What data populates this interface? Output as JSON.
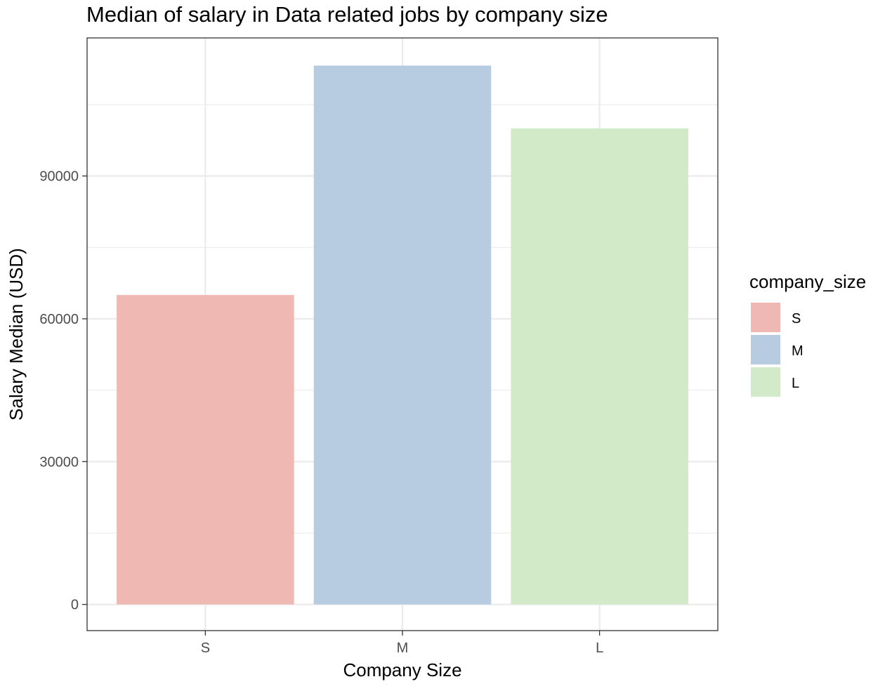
{
  "chart_data": {
    "type": "bar",
    "title": "Median of salary in Data related jobs by company size",
    "xlabel": "Company Size",
    "ylabel": "Salary Median (USD)",
    "categories": [
      "S",
      "M",
      "L"
    ],
    "values": [
      65000,
      113188,
      100000
    ],
    "colors": [
      "#F0B8B2",
      "#B8CCE1",
      "#D3EAC9"
    ],
    "ylim": [
      -5500,
      119000
    ],
    "yticks": [
      0,
      30000,
      60000,
      90000
    ],
    "ytick_labels": [
      "0",
      "30000",
      "60000",
      "90000"
    ],
    "grid": true,
    "legend": {
      "title": "company_size",
      "placement": "right",
      "entries": [
        "S",
        "M",
        "L"
      ]
    }
  }
}
